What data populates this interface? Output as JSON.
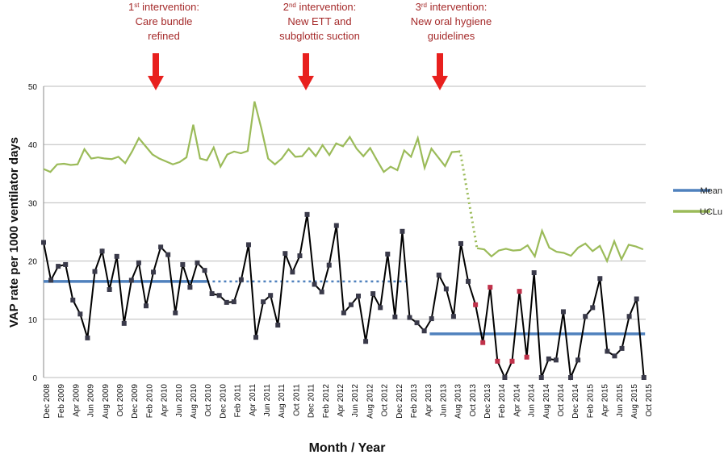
{
  "chart_data": {
    "type": "line",
    "title": "",
    "xlabel": "Month / Year",
    "ylabel": "VAP rate per 1000 ventilator days",
    "ylim": [
      0,
      50
    ],
    "yticks": [
      "0",
      "10",
      "20",
      "30",
      "40",
      "50"
    ],
    "grid": true,
    "legend_position": "right",
    "x_labels": [
      "Dec 2008",
      "Feb 2009",
      "Apr 2009",
      "Jun 2009",
      "Aug 2009",
      "Oct 2009",
      "Dec 2009",
      "Feb 2010",
      "Apr 2010",
      "Jun 2010",
      "Aug 2010",
      "Oct 2010",
      "Dec 2010",
      "Feb 2011",
      "Apr 2011",
      "Jun 2011",
      "Aug 2011",
      "Oct 2011",
      "Dec 2011",
      "Feb 2012",
      "Apr 2012",
      "Jun 2012",
      "Aug 2012",
      "Oct 2012",
      "Dec 2012",
      "Feb 2013",
      "Apr 2013",
      "Jun 2013",
      "Aug 2013",
      "Oct 2013",
      "Dec 2013",
      "Feb 2014",
      "Apr 2014",
      "Jun 2014",
      "Aug 2014",
      "Oct 2014",
      "Dec 2014",
      "Feb 2015",
      "Apr 2015",
      "Jun 2015",
      "Aug 2015",
      "Oct 2015"
    ],
    "vap_rate": {
      "color": "#000000",
      "values": [
        23.2,
        16.7,
        19.1,
        19.4,
        13.3,
        10.9,
        6.8,
        18.2,
        21.7,
        15.1,
        20.8,
        9.3,
        16.7,
        19.7,
        12.3,
        18.1,
        22.4,
        21.1,
        11.1,
        19.4,
        15.5,
        19.7,
        18.4,
        14.4,
        14.1,
        12.9,
        13.0,
        16.8,
        22.8,
        6.9,
        13.0,
        14.1,
        9.0,
        21.3,
        18.1,
        20.9,
        28.0,
        16.0,
        14.7,
        19.3,
        26.1,
        11.1,
        12.5,
        14.0,
        6.2,
        14.4,
        12.0,
        21.2,
        10.4,
        25.1,
        10.3,
        9.4,
        8.0,
        10.1,
        17.6,
        15.2,
        10.5,
        23.0,
        16.5,
        12.5,
        6.0,
        15.5,
        2.8,
        0.0,
        2.8,
        14.8,
        3.5,
        18.0,
        0.0,
        3.2,
        3.0,
        11.3,
        0.0,
        3.0,
        10.5,
        12.0,
        17.0,
        4.5,
        3.7,
        5.0,
        10.5,
        13.5,
        0.0
      ],
      "special_points_index_from": 59,
      "special_point_color": "#c0314a"
    },
    "series": [
      {
        "name": "Mean",
        "color": "#4f81bd",
        "segments": [
          {
            "x_from": 0,
            "x_to": 44,
            "y": 16.5,
            "style": "solid"
          },
          {
            "x_from": 44,
            "x_to": 98,
            "y": 16.5,
            "style": "dotted"
          },
          {
            "x_from": 104,
            "x_to": 162,
            "y": 7.5,
            "style": "solid"
          }
        ]
      },
      {
        "name": "UCLu",
        "color": "#9bbb59",
        "values": [
          35.8,
          35.3,
          36.6,
          36.7,
          36.5,
          36.6,
          39.2,
          37.6,
          37.8,
          37.6,
          37.5,
          37.9,
          36.8,
          38.8,
          41.1,
          39.7,
          38.3,
          37.6,
          37.1,
          36.6,
          37.0,
          37.8,
          43.4,
          37.6,
          37.3,
          39.5,
          36.2,
          38.3,
          38.8,
          38.5,
          38.9,
          47.4,
          42.8,
          37.6,
          36.6,
          37.6,
          39.2,
          37.9,
          38.0,
          39.4,
          38.0,
          39.9,
          38.2,
          40.2,
          39.7,
          41.3,
          39.3,
          38.0,
          39.4,
          37.3,
          35.3,
          36.2,
          35.6,
          39.0,
          37.9,
          41.1,
          36.0,
          39.3,
          37.8,
          36.3,
          38.7,
          38.8,
          22.2,
          22.0,
          20.8,
          21.8,
          22.1,
          21.8,
          21.9,
          22.7,
          20.8,
          25.2,
          22.3,
          21.6,
          21.4,
          20.9,
          22.3,
          23.0,
          21.7,
          22.6,
          20.0,
          23.4,
          20.3,
          22.8,
          22.5,
          22.0
        ],
        "dotted_from_index": 61
      }
    ],
    "annotations": [
      {
        "id": "intervention1",
        "sup": "st",
        "lines": [
          "1|st| intervention:",
          "Care bundle",
          "refined"
        ],
        "x_index": 14
      },
      {
        "id": "intervention2",
        "sup": "nd",
        "lines": [
          "2|nd| intervention:",
          "New ETT and",
          "subglottic suction"
        ],
        "x_index": 36
      },
      {
        "id": "intervention3",
        "sup": "rd",
        "lines": [
          "3|rd| intervention:",
          "New oral hygiene",
          "guidelines"
        ],
        "x_index": 55
      }
    ],
    "annotation_color": "#a52a2a",
    "arrow_color": "#e8201e",
    "grid_color": "#bbbbbb"
  }
}
